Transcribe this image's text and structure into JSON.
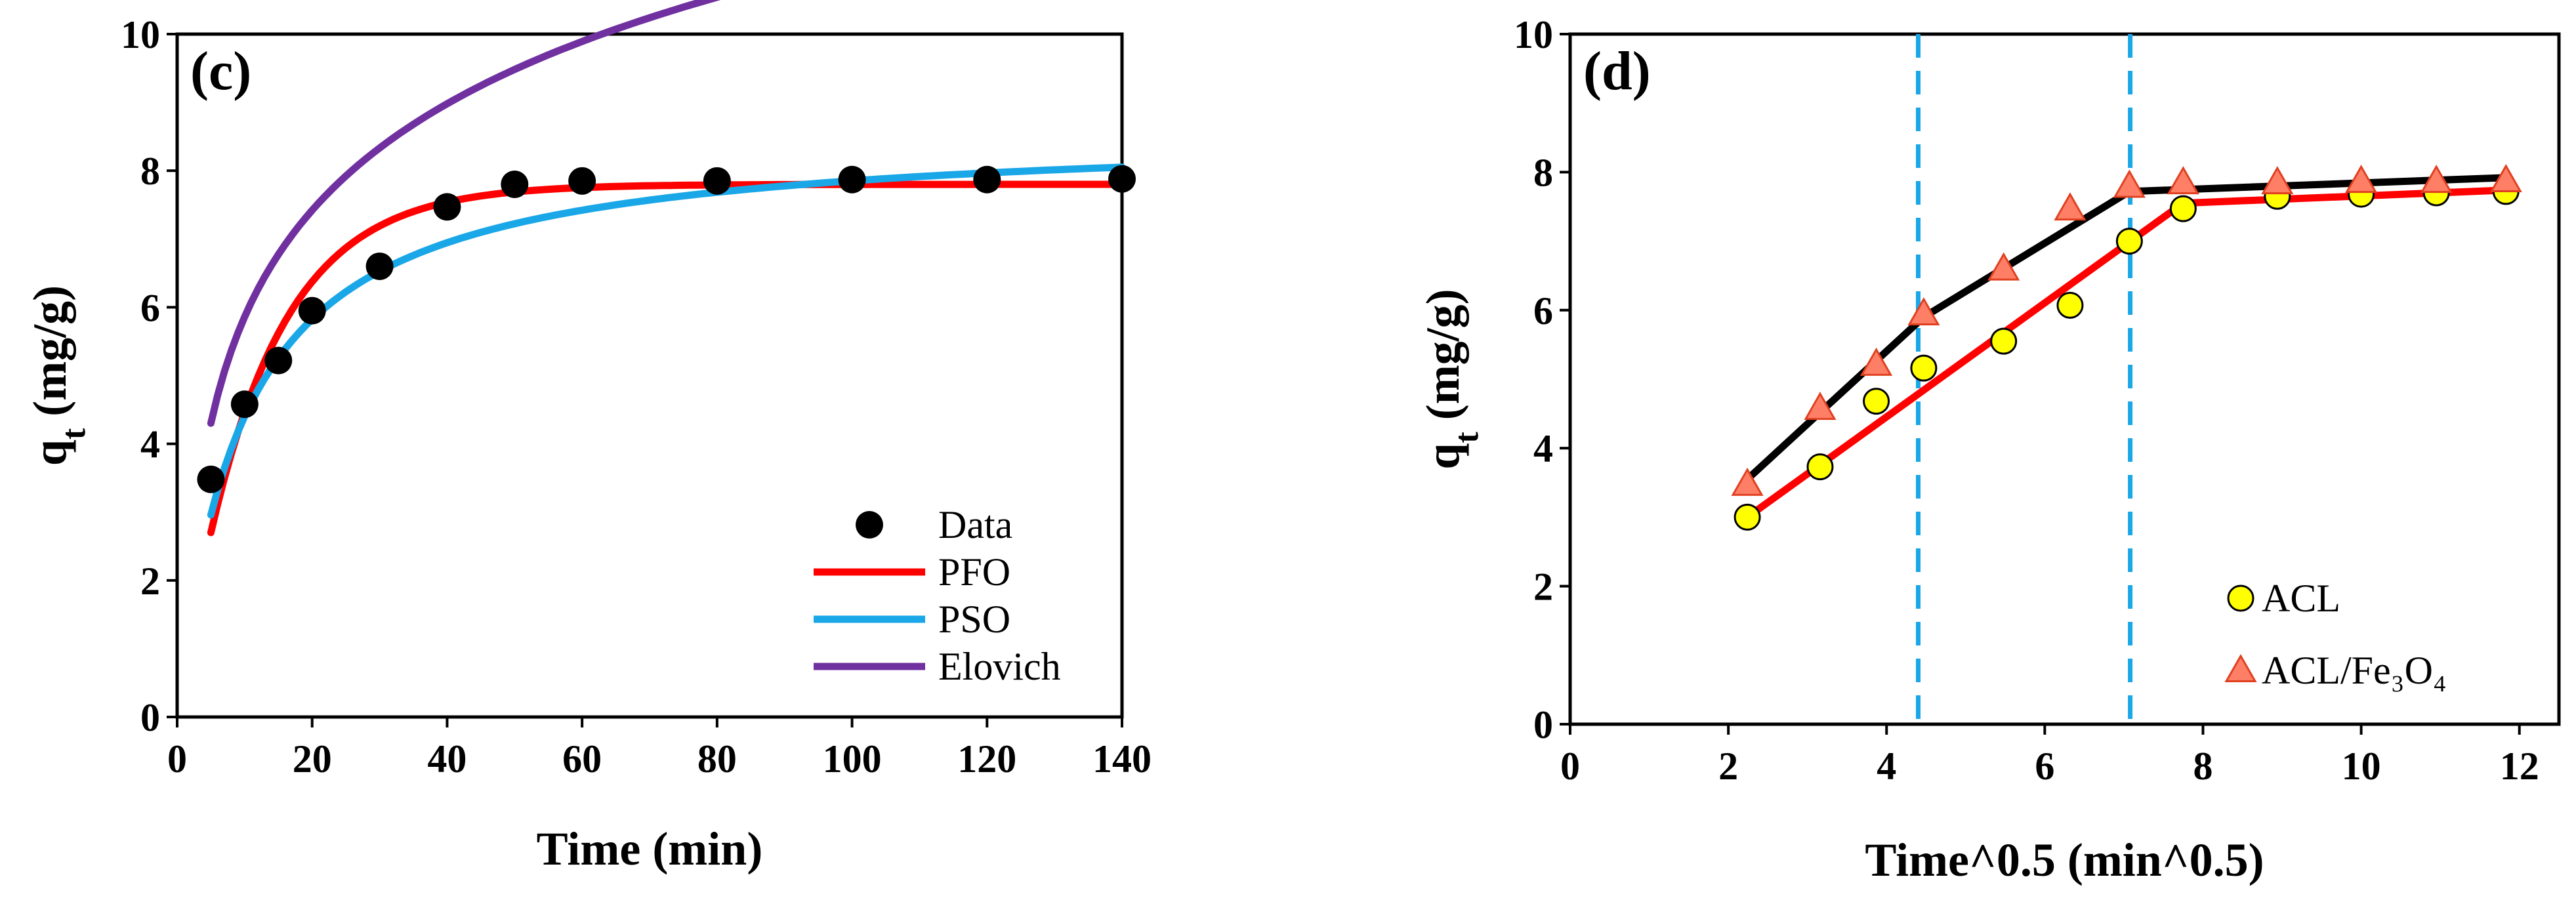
{
  "chart_data": [
    {
      "type": "scatter",
      "panel_label": "(c)",
      "xlabel": "Time (min)",
      "ylabel": "q",
      "ylabel_sub": "t",
      "ylabel_units": "(mg/g)",
      "xlim": [
        0,
        140
      ],
      "ylim": [
        0,
        10
      ],
      "xticks": [
        0,
        20,
        40,
        60,
        80,
        100,
        120,
        140
      ],
      "yticks": [
        0,
        2,
        4,
        6,
        8,
        10
      ],
      "legend_position": "bottom-right",
      "legend": [
        "Data",
        "PFO",
        "PSO",
        "Elovich"
      ],
      "series": [
        {
          "name": "Data",
          "kind": "points",
          "color": "#000000",
          "x": [
            5,
            10,
            15,
            20,
            30,
            40,
            50,
            60,
            80,
            100,
            120,
            140
          ],
          "y": [
            3.48,
            4.58,
            5.22,
            5.95,
            6.6,
            7.47,
            7.8,
            7.85,
            7.85,
            7.87,
            7.87,
            7.88
          ]
        },
        {
          "name": "PFO",
          "kind": "line",
          "color": "#ff0000",
          "model": {
            "qe": 7.8,
            "k": 0.085
          }
        },
        {
          "name": "PSO",
          "kind": "line",
          "color": "#1aa7e8",
          "model": {
            "qe": 8.6,
            "k": 0.0122
          }
        },
        {
          "name": "Elovich",
          "kind": "line",
          "color": "#7030a0",
          "model": {
            "a": 0.68,
            "b": 2.25
          }
        }
      ]
    },
    {
      "type": "scatter",
      "panel_label": "(d)",
      "xlabel": "Time^0.5 (min^0.5)",
      "ylabel": "q",
      "ylabel_sub": "t",
      "ylabel_units": "(mg/g)",
      "xlim": [
        0,
        12.5
      ],
      "ylim": [
        0,
        10
      ],
      "xticks": [
        0,
        2,
        4,
        6,
        8,
        10,
        12
      ],
      "yticks": [
        0,
        2,
        4,
        6,
        8,
        10
      ],
      "legend_position": "bottom-right",
      "legend": [
        "ACL",
        "ACL/Fe₃O₄"
      ],
      "vlines": [
        4.4,
        7.08
      ],
      "series": [
        {
          "name": "ACL",
          "kind": "points",
          "marker": "circle",
          "color": "#ffff00",
          "x": [
            2.24,
            3.16,
            3.87,
            4.47,
            5.48,
            6.32,
            7.07,
            7.75,
            8.94,
            10.0,
            10.95,
            11.83
          ],
          "y": [
            3.0,
            3.73,
            4.68,
            5.16,
            5.55,
            6.07,
            7.0,
            7.47,
            7.65,
            7.68,
            7.7,
            7.72
          ]
        },
        {
          "name": "ACL/Fe₃O₄",
          "kind": "points",
          "marker": "triangle",
          "color": "#ff7f66",
          "x": [
            2.24,
            3.16,
            3.87,
            4.47,
            5.48,
            6.32,
            7.07,
            7.75,
            8.94,
            10.0,
            10.95,
            11.83
          ],
          "y": [
            3.48,
            4.58,
            5.22,
            5.95,
            6.6,
            7.47,
            7.8,
            7.85,
            7.85,
            7.87,
            7.87,
            7.88
          ]
        },
        {
          "name": "ACL fit",
          "kind": "line",
          "color": "#ff0000",
          "x": [
            2.24,
            7.75,
            11.83
          ],
          "y": [
            3.0,
            7.55,
            7.74
          ]
        },
        {
          "name": "ACL/Fe₃O₄ fit",
          "kind": "line",
          "color": "#000000",
          "x": [
            2.24,
            4.47,
            7.07,
            11.83
          ],
          "y": [
            3.55,
            5.9,
            7.72,
            7.92
          ]
        }
      ]
    }
  ]
}
